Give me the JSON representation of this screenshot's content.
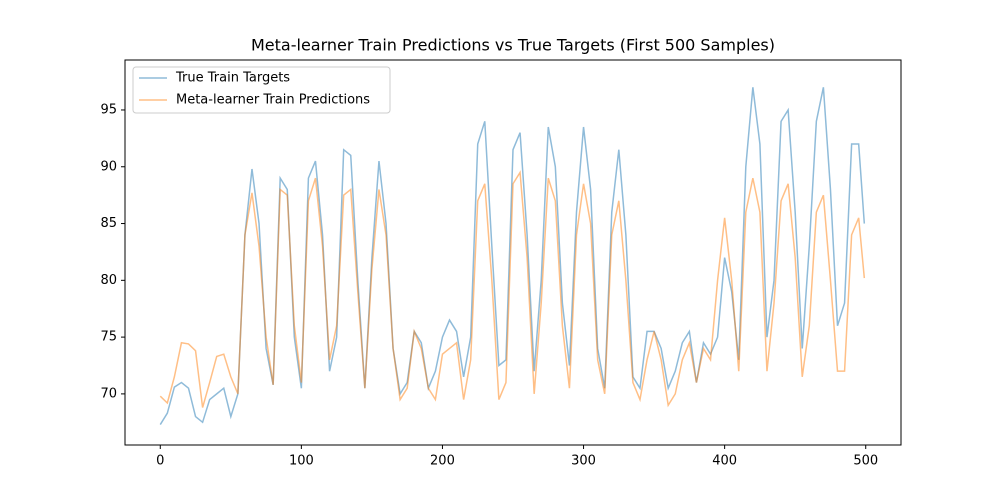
{
  "chart_data": {
    "type": "line",
    "title": "Meta-learner Train Predictions vs True Targets (First 500 Samples)",
    "x": [
      0,
      5,
      10,
      15,
      20,
      25,
      30,
      35,
      40,
      45,
      50,
      55,
      60,
      65,
      70,
      75,
      80,
      85,
      90,
      95,
      100,
      105,
      110,
      115,
      120,
      125,
      130,
      135,
      140,
      145,
      150,
      155,
      160,
      165,
      170,
      175,
      180,
      185,
      190,
      195,
      200,
      205,
      210,
      215,
      220,
      225,
      230,
      235,
      240,
      245,
      250,
      255,
      260,
      265,
      270,
      275,
      280,
      285,
      290,
      295,
      300,
      305,
      310,
      315,
      320,
      325,
      330,
      335,
      340,
      345,
      350,
      355,
      360,
      365,
      370,
      375,
      380,
      385,
      390,
      395,
      400,
      405,
      410,
      415,
      420,
      425,
      430,
      435,
      440,
      445,
      450,
      455,
      460,
      465,
      470,
      475,
      480,
      485,
      490,
      495,
      499
    ],
    "series": [
      {
        "name": "True Train Targets",
        "color": "#1f77b4",
        "values": [
          67.3,
          68.3,
          70.6,
          71.0,
          70.5,
          68.0,
          67.5,
          69.5,
          70.0,
          70.5,
          68.0,
          70.0,
          84.0,
          89.8,
          85.0,
          74.0,
          70.8,
          89.0,
          88.0,
          75.0,
          70.5,
          89.0,
          90.5,
          84.0,
          72.0,
          75.0,
          91.5,
          91.0,
          80.0,
          70.5,
          82.0,
          90.5,
          85.0,
          74.0,
          70.0,
          71.0,
          75.5,
          74.5,
          70.5,
          72.0,
          75.0,
          76.5,
          75.5,
          71.5,
          75.0,
          92.0,
          94.0,
          83.0,
          72.5,
          73.0,
          91.5,
          93.0,
          84.0,
          72.0,
          80.0,
          93.5,
          90.0,
          78.0,
          72.5,
          86.0,
          93.5,
          88.0,
          74.0,
          70.5,
          86.0,
          91.5,
          84.0,
          71.5,
          70.5,
          75.5,
          75.5,
          74.0,
          70.5,
          72.0,
          74.5,
          75.5,
          71.0,
          74.5,
          73.5,
          75.0,
          82.0,
          79.0,
          73.0,
          90.0,
          97.0,
          92.0,
          75.0,
          80.0,
          94.0,
          95.0,
          86.0,
          74.0,
          83.0,
          94.0,
          97.0,
          88.0,
          76.0,
          78.0,
          92.0,
          92.0,
          85.0
        ]
      },
      {
        "name": "Meta-learner Train Predictions",
        "color": "#ff7f0e",
        "values": [
          69.8,
          69.2,
          71.5,
          74.5,
          74.4,
          73.8,
          68.8,
          71.0,
          73.3,
          73.5,
          71.5,
          70.0,
          84.0,
          87.7,
          83.0,
          75.0,
          70.8,
          88.0,
          87.5,
          76.0,
          71.0,
          87.0,
          89.0,
          83.0,
          73.0,
          76.0,
          87.5,
          88.0,
          79.0,
          70.5,
          81.0,
          88.0,
          84.0,
          74.0,
          69.5,
          70.5,
          75.5,
          74.0,
          70.5,
          69.5,
          73.5,
          74.0,
          74.5,
          69.5,
          73.0,
          87.0,
          88.5,
          80.0,
          69.5,
          71.0,
          88.5,
          89.5,
          82.0,
          70.0,
          78.0,
          89.0,
          87.0,
          76.0,
          70.5,
          84.0,
          88.5,
          85.0,
          73.0,
          70.0,
          84.0,
          87.0,
          80.0,
          71.0,
          69.5,
          73.0,
          75.5,
          73.0,
          69.0,
          70.0,
          73.0,
          74.5,
          71.0,
          74.0,
          73.0,
          80.0,
          85.5,
          80.0,
          72.0,
          86.0,
          89.0,
          86.0,
          72.0,
          78.0,
          87.0,
          88.5,
          82.0,
          71.5,
          76.0,
          86.0,
          87.5,
          80.0,
          72.0,
          72.0,
          84.0,
          85.5,
          80.2
        ]
      }
    ],
    "xlim": [
      -25,
      525
    ],
    "ylim": [
      65.5,
      99.4
    ],
    "xticks": [
      0,
      100,
      200,
      300,
      400,
      500
    ],
    "yticks": [
      70,
      75,
      80,
      85,
      90,
      95
    ],
    "legend": "upper left"
  }
}
